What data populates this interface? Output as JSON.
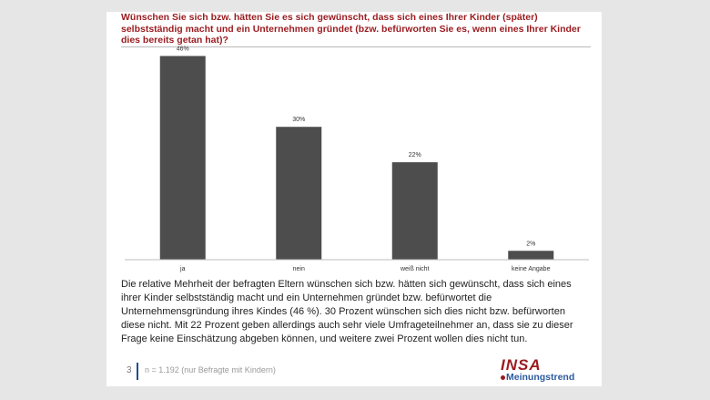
{
  "slide": {
    "title": "Wünschen Sie sich bzw. hätten Sie es sich gewünscht, dass sich eines Ihrer Kinder (später) selbstständig macht und ein Unternehmen gründet (bzw. befürworten Sie es, wenn eines Ihrer Kinder dies bereits getan hat)?",
    "body": "Die relative Mehrheit der befragten Eltern wünschen sich bzw. hätten sich gewünscht, dass sich eines ihrer Kinder selbstständig macht und ein Unternehmen gründet bzw. befürwortet die Unternehmensgründung ihres Kindes (46 %). 30 Prozent wünschen sich dies nicht bzw. befürworten diese nicht. Mit 22 Prozent geben allerdings auch sehr viele Umfrageteilnehmer an, dass sie zu dieser Frage keine Einschätzung abgeben können, und weitere zwei Prozent wollen dies nicht tun.",
    "page_number": "3",
    "footnote": "n = 1.192 (nur Befragte mit Kindern)"
  },
  "logo": {
    "name": "INSA",
    "subtitle": "Meinungstrend",
    "primary_color": "#9b1b1f",
    "secondary_color": "#2c5aa0"
  },
  "chart_data": {
    "type": "bar",
    "categories": [
      "ja",
      "nein",
      "weiß nicht",
      "keine Angabe"
    ],
    "values": [
      46,
      30,
      22,
      2
    ],
    "value_labels": [
      "46%",
      "30%",
      "22%",
      "2%"
    ],
    "ylim": [
      0,
      50
    ],
    "bar_color": "#4d4d4d",
    "grid": false,
    "legend": "none"
  }
}
